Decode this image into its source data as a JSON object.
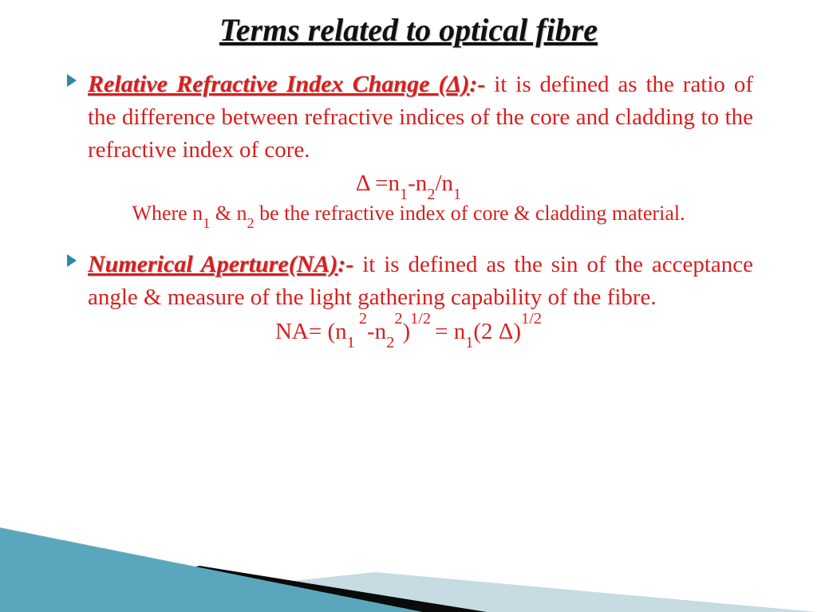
{
  "colors": {
    "title_text": "#111111",
    "term_text": "#d81e1e",
    "body_text": "#d81e1e",
    "bullet": "#2b8aa8",
    "triangle_top_fill": "#5aa7bd",
    "triangle_top_stroke": "#3a8199",
    "triangle_mid": "#0a0a0a",
    "triangle_low": "#c6dbe2"
  },
  "title": "Terms related to optical fibre",
  "items": [
    {
      "term": "Relative  Refractive Index Change (Δ)",
      "colon": ":-",
      "body": " it is defined as the ratio of the difference between refractive indices of the core and cladding to the refractive index of core.",
      "equation_html": "Δ =n<sub>1</sub>-n<sub>2</sub>/n<sub>1</sub>",
      "note_html": "Where  n<sub>1</sub> & n<sub>2</sub> be the refractive index of core & cladding material."
    },
    {
      "term": "Numerical Aperture(NA)",
      "colon": ":-",
      "body": " it is defined as the sin of the acceptance angle & measure of the light gathering capability of the fibre.",
      "equation_html": "NA= (n<sub>1</sub><sup> 2</sup>-n<sub>2</sub><sup>2</sup>)<sup>1/2 </sup>= n<sub>1</sub>(2 Δ)<sup>1/2</sup>",
      "note_html": ""
    }
  ]
}
